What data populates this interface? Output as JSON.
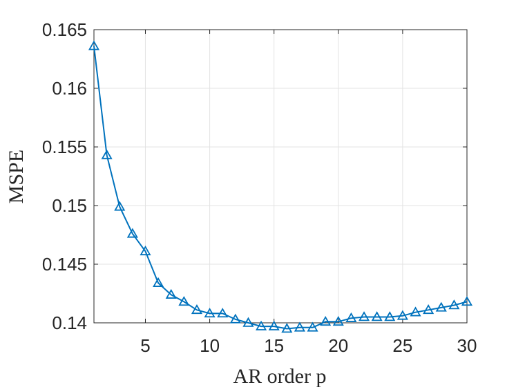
{
  "chart_data": {
    "type": "line",
    "xlabel": "AR order p",
    "ylabel": "MSPE",
    "xlim": [
      1,
      30
    ],
    "ylim": [
      0.14,
      0.165
    ],
    "xticks": [
      5,
      10,
      15,
      20,
      25,
      30
    ],
    "yticks": [
      0.14,
      0.145,
      0.15,
      0.155,
      0.16,
      0.165
    ],
    "xtick_labels": [
      "5",
      "10",
      "15",
      "20",
      "25",
      "30"
    ],
    "ytick_labels": [
      "0.14",
      "0.145",
      "0.15",
      "0.155",
      "0.16",
      "0.165"
    ],
    "grid": true,
    "legend": false,
    "marker": "triangle",
    "color": "#0072BD",
    "series": [
      {
        "x": [
          1,
          2,
          3,
          4,
          5,
          6,
          7,
          8,
          9,
          10,
          11,
          12,
          13,
          14,
          15,
          16,
          17,
          18,
          19,
          20,
          21,
          22,
          23,
          24,
          25,
          26,
          27,
          28,
          29,
          30
        ],
        "values": [
          0.1636,
          0.1543,
          0.1499,
          0.1476,
          0.1461,
          0.1434,
          0.1424,
          0.1418,
          0.1411,
          0.1408,
          0.1408,
          0.1403,
          0.14,
          0.1397,
          0.1397,
          0.1395,
          0.1396,
          0.1396,
          0.1401,
          0.1401,
          0.1404,
          0.1405,
          0.1405,
          0.1405,
          0.1406,
          0.1409,
          0.1411,
          0.1413,
          0.1415,
          0.1418
        ]
      }
    ]
  }
}
